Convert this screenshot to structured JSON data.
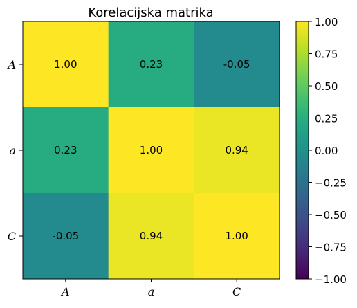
{
  "chart_data": {
    "type": "heatmap",
    "title": "Korelacijska matrika",
    "x_categories": [
      "A",
      "a",
      "C"
    ],
    "y_categories": [
      "A",
      "a",
      "C"
    ],
    "values": [
      [
        1.0,
        0.23,
        -0.05
      ],
      [
        0.23,
        1.0,
        0.94
      ],
      [
        -0.05,
        0.94,
        1.0
      ]
    ],
    "cell_labels": [
      [
        "1.00",
        "0.23",
        "-0.05"
      ],
      [
        "0.23",
        "1.00",
        "0.94"
      ],
      [
        "-0.05",
        "0.94",
        "1.00"
      ]
    ],
    "colormap": "viridis",
    "vmin": -1.0,
    "vmax": 1.0,
    "colorbar": {
      "ticks": [
        1.0,
        0.75,
        0.5,
        0.25,
        0.0,
        -0.25,
        -0.5,
        -0.75,
        -1.0
      ],
      "tick_labels": [
        "1.00",
        "0.75",
        "0.50",
        "0.25",
        "0.00",
        "−0.25",
        "−0.50",
        "−0.75",
        "−1.00"
      ],
      "placement": "right"
    },
    "grid": false
  }
}
